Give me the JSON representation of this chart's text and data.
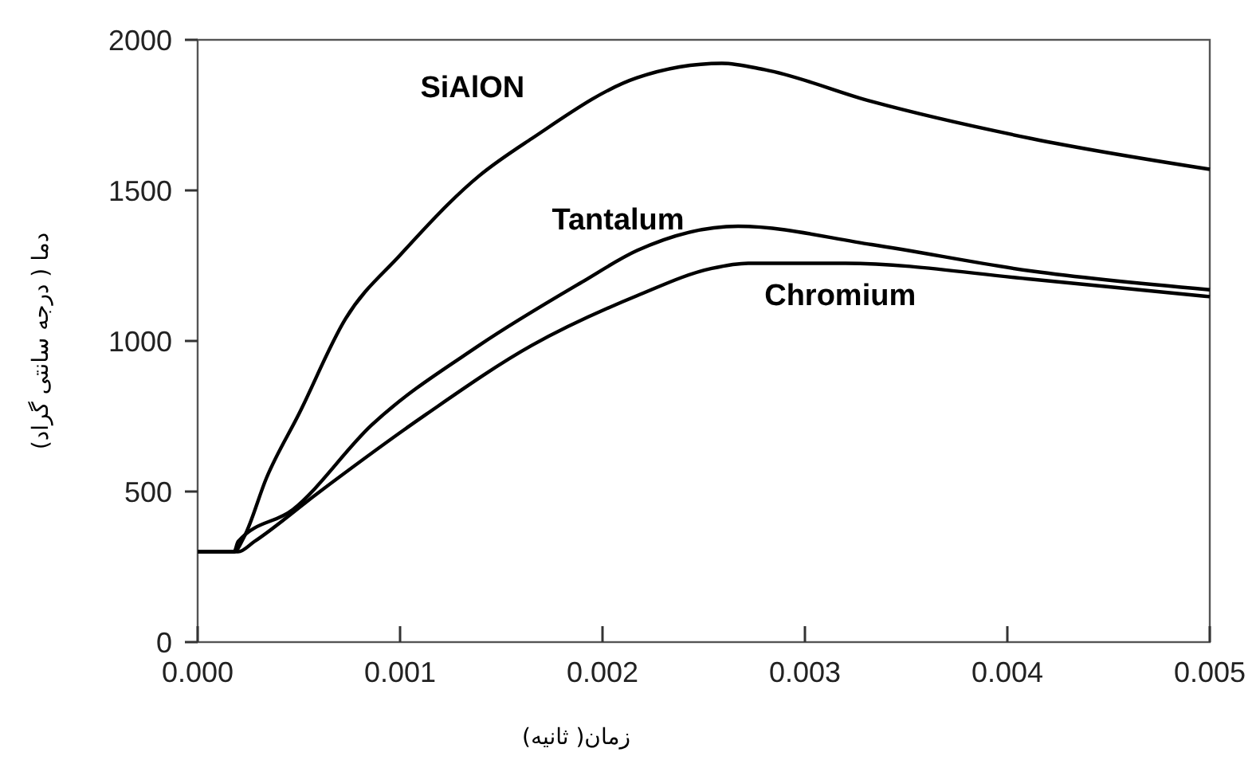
{
  "chart_data": {
    "type": "line",
    "xlabel": "زمان( ثانیه)",
    "ylabel": "دما ( درجه سانتی گراد)",
    "xlim": [
      0,
      0.005
    ],
    "ylim": [
      0,
      2000
    ],
    "xticks": [
      {
        "value": 0,
        "label": "0.000"
      },
      {
        "value": 0.001,
        "label": "0.001"
      },
      {
        "value": 0.002,
        "label": "0.002"
      },
      {
        "value": 0.003,
        "label": "0.003"
      },
      {
        "value": 0.004,
        "label": "0.004"
      },
      {
        "value": 0.005,
        "label": "0.005"
      }
    ],
    "yticks": [
      0,
      500,
      1000,
      1500,
      2000
    ],
    "grid": false,
    "marker": "none",
    "line_style": "solid",
    "series": [
      {
        "name": "SiAlON",
        "color": "#000000",
        "x": [
          0,
          0.00018,
          0.00023,
          0.00034,
          0.0005,
          0.00073,
          0.001,
          0.00139,
          0.00165,
          0.00217,
          0.00259,
          0.0028,
          0.00333,
          0.00412,
          0.005
        ],
        "values": [
          300,
          300,
          350,
          545,
          757,
          1073,
          1285,
          1548,
          1672,
          1874,
          1922,
          1901,
          1795,
          1672,
          1570
        ]
      },
      {
        "name": "Tantalum",
        "color": "#000000",
        "x": [
          0,
          0.00018,
          0.0002,
          0.00047,
          0.00086,
          0.00139,
          0.0019,
          0.00217,
          0.00267,
          0.00333,
          0.00412,
          0.005
        ],
        "values": [
          300,
          300,
          334,
          440,
          721,
          985,
          1196,
          1300,
          1381,
          1320,
          1232,
          1170
        ]
      },
      {
        "name": "Chromium",
        "color": "#000000",
        "x": [
          0,
          0.0002,
          0.00028,
          0.00059,
          0.00113,
          0.00165,
          0.00217,
          0.00254,
          0.00272,
          0.0032,
          0.00412,
          0.005
        ],
        "values": [
          300,
          300,
          334,
          493,
          757,
          985,
          1150,
          1241,
          1258,
          1258,
          1205,
          1147
        ]
      }
    ]
  }
}
